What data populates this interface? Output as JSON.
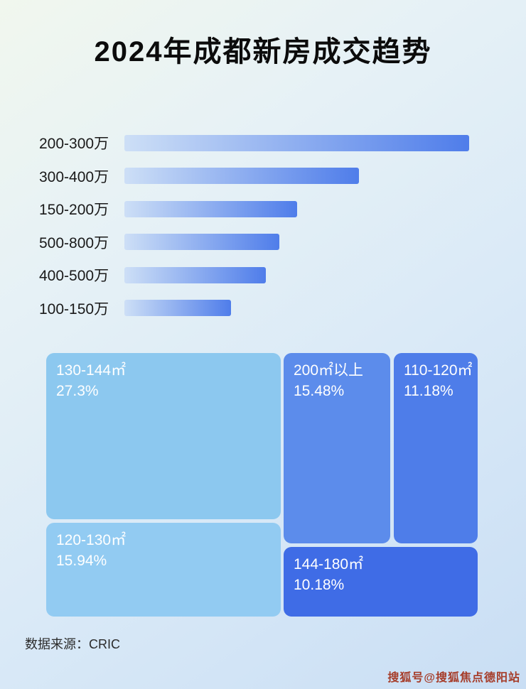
{
  "page": {
    "title": "2024年成都新房成交趋势",
    "source": "数据来源：CRIC",
    "watermark": "搜狐号@搜狐焦点德阳站"
  },
  "colors": {
    "bar_gradient_start": "#cddff6",
    "bar_gradient_end": "#4f7dea",
    "watermark_color": "#a63d2a",
    "title_color": "#0c0c0c"
  },
  "chart_data": [
    {
      "type": "bar",
      "orientation": "horizontal",
      "title": "2024年成都新房成交趋势",
      "categories": [
        "200-300万",
        "300-400万",
        "150-200万",
        "500-800万",
        "400-500万",
        "100-150万"
      ],
      "values": [
        100,
        68,
        50,
        45,
        41,
        31
      ],
      "value_note": "relative bar lengths in % of longest bar; no numeric axis or data labels shown",
      "xlabel": "",
      "ylabel": "",
      "grid": false,
      "legend": false
    },
    {
      "type": "treemap",
      "items": [
        {
          "label": "130-144㎡",
          "value": 27.3,
          "display": "27.3%",
          "color": "#8cc8ef"
        },
        {
          "label": "200㎡以上",
          "value": 15.48,
          "display": "15.48%",
          "color": "#5c8ceb"
        },
        {
          "label": "110-120㎡",
          "value": 11.18,
          "display": "11.18%",
          "color": "#4e7de9"
        },
        {
          "label": "120-130㎡",
          "value": 15.94,
          "display": "15.94%",
          "color": "#92cbf2"
        },
        {
          "label": "144-180㎡",
          "value": 10.18,
          "display": "10.18%",
          "color": "#3f6ce6"
        }
      ],
      "grid": false,
      "legend": false
    }
  ]
}
